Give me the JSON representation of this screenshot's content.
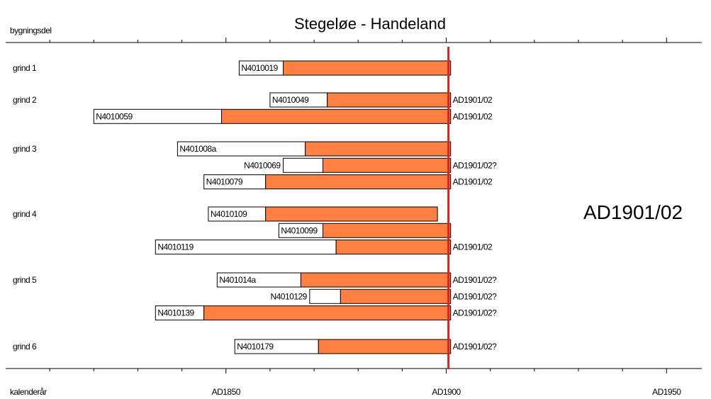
{
  "chart_data": {
    "type": "bar",
    "title": "Stegeløe - Handeland",
    "y_axis_title": "bygningsdel",
    "x_axis_title": "kalenderår",
    "x_ticks": [
      "AD1850",
      "AD1900",
      "AD1950"
    ],
    "x_tick_values": [
      1850,
      1900,
      1950
    ],
    "x_range": [
      1800,
      1958
    ],
    "felling_line_year": 1900.5,
    "felling_label": "AD1901/02",
    "groups": [
      "grind 1",
      "grind 2",
      "grind 3",
      "grind 4",
      "grind 5",
      "grind 6"
    ],
    "series": [
      {
        "group": 0,
        "sample": "N4010019",
        "start": 1853,
        "heartwood_end": 1863,
        "end": 1901,
        "date_label": ""
      },
      {
        "group": 1,
        "sample": "N4010049",
        "start": 1860,
        "heartwood_end": 1873,
        "end": 1901,
        "date_label": "AD1901/02"
      },
      {
        "group": 1,
        "sample": "N4010059",
        "start": 1820,
        "heartwood_end": 1849,
        "end": 1901,
        "date_label": "AD1901/02"
      },
      {
        "group": 2,
        "sample": "N401008a",
        "start": 1839,
        "heartwood_end": 1868,
        "end": 1901,
        "date_label": ""
      },
      {
        "group": 2,
        "sample": "N4010069",
        "start": 1863,
        "heartwood_end": 1872,
        "end": 1901,
        "date_label": "AD1901/02?"
      },
      {
        "group": 2,
        "sample": "N4010079",
        "start": 1845,
        "heartwood_end": 1859,
        "end": 1901,
        "date_label": "AD1901/02"
      },
      {
        "group": 3,
        "sample": "N4010109",
        "start": 1846,
        "heartwood_end": 1859,
        "end": 1898,
        "date_label": ""
      },
      {
        "group": 3,
        "sample": "N4010099",
        "start": 1862,
        "heartwood_end": 1872,
        "end": 1901,
        "date_label": ""
      },
      {
        "group": 3,
        "sample": "N4010119",
        "start": 1834,
        "heartwood_end": 1875,
        "end": 1901,
        "date_label": "AD1901/02"
      },
      {
        "group": 4,
        "sample": "N401014a",
        "start": 1848,
        "heartwood_end": 1867,
        "end": 1901,
        "date_label": "AD1901/02?"
      },
      {
        "group": 4,
        "sample": "N4010129",
        "start": 1869,
        "heartwood_end": 1876,
        "end": 1901,
        "date_label": "AD1901/02?"
      },
      {
        "group": 4,
        "sample": "N4010139",
        "start": 1834,
        "heartwood_end": 1845,
        "end": 1901,
        "date_label": "AD1901/02?"
      },
      {
        "group": 5,
        "sample": "N4010179",
        "start": 1852,
        "heartwood_end": 1871,
        "end": 1901,
        "date_label": "AD1901/02?"
      }
    ],
    "colors": {
      "sapwood": "#ffffff",
      "heartwood": "#ff8040",
      "felling_line": "#e41e1e"
    }
  }
}
